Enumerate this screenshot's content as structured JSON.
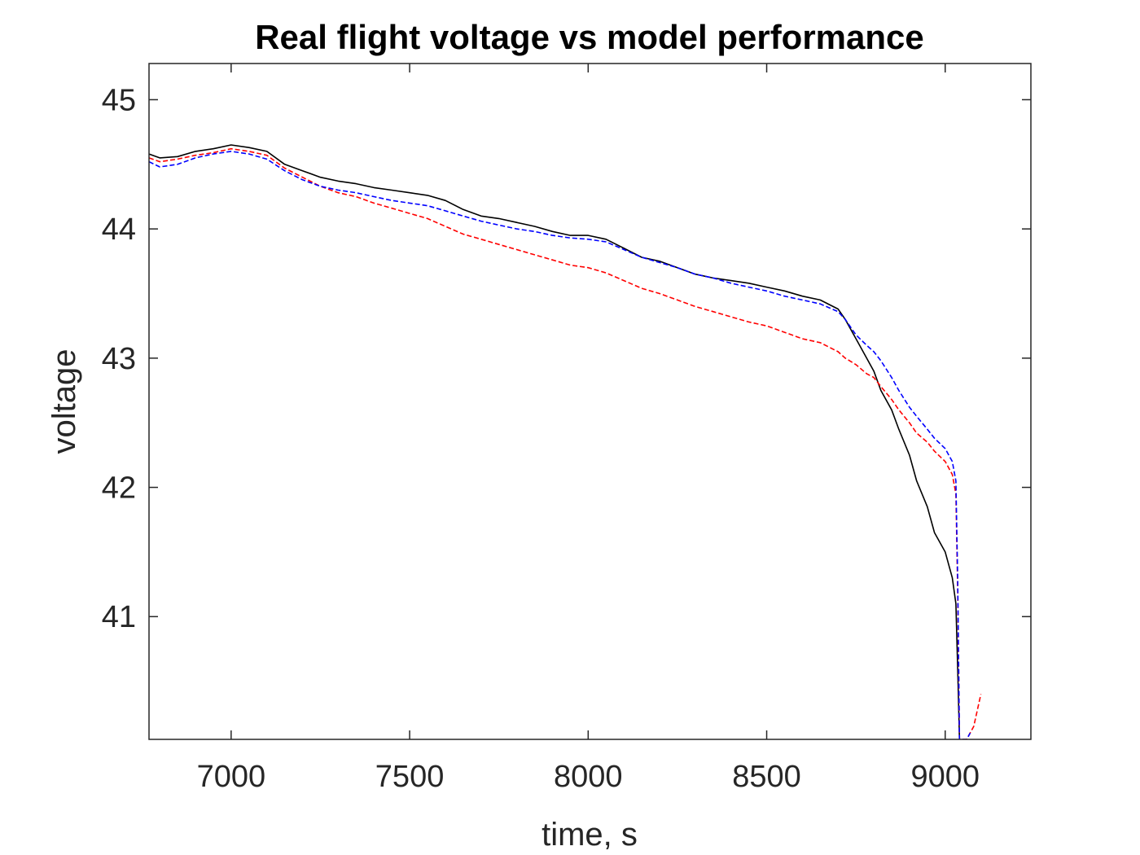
{
  "chart_data": {
    "type": "line",
    "title": "Real flight voltage vs model performance",
    "xlabel": "time, s",
    "ylabel": "voltage",
    "xlim": [
      6770,
      9240
    ],
    "ylim": [
      40.05,
      45.28
    ],
    "xticks": [
      7000,
      7500,
      8000,
      8500,
      9000
    ],
    "yticks": [
      41,
      42,
      43,
      44,
      45
    ],
    "grid": false,
    "legend": "none",
    "series": [
      {
        "color": "#000000",
        "style": "solid",
        "x": [
          6770,
          6800,
          6850,
          6900,
          6950,
          7000,
          7050,
          7100,
          7150,
          7200,
          7250,
          7300,
          7350,
          7400,
          7450,
          7500,
          7550,
          7600,
          7650,
          7700,
          7750,
          7800,
          7850,
          7900,
          7950,
          8000,
          8050,
          8100,
          8150,
          8200,
          8250,
          8300,
          8350,
          8400,
          8450,
          8500,
          8550,
          8600,
          8650,
          8700,
          8720,
          8750,
          8780,
          8800,
          8820,
          8850,
          8870,
          8900,
          8920,
          8950,
          8970,
          9000,
          9020,
          9030,
          9035,
          9040
        ],
        "y": [
          44.58,
          44.55,
          44.56,
          44.6,
          44.62,
          44.65,
          44.63,
          44.6,
          44.5,
          44.45,
          44.4,
          44.37,
          44.35,
          44.32,
          44.3,
          44.28,
          44.26,
          44.22,
          44.15,
          44.1,
          44.08,
          44.05,
          44.02,
          43.98,
          43.95,
          43.95,
          43.92,
          43.85,
          43.78,
          43.75,
          43.7,
          43.65,
          43.62,
          43.6,
          43.58,
          43.55,
          43.52,
          43.48,
          43.45,
          43.38,
          43.3,
          43.15,
          43.0,
          42.9,
          42.75,
          42.6,
          42.45,
          42.25,
          42.05,
          41.85,
          41.65,
          41.5,
          41.3,
          41.1,
          40.6,
          40.05
        ]
      },
      {
        "color": "#ff0000",
        "style": "dashed",
        "x": [
          6770,
          6800,
          6850,
          6900,
          6950,
          7000,
          7050,
          7100,
          7150,
          7200,
          7250,
          7300,
          7350,
          7400,
          7450,
          7500,
          7550,
          7600,
          7650,
          7700,
          7750,
          7800,
          7850,
          7900,
          7950,
          8000,
          8050,
          8100,
          8150,
          8200,
          8250,
          8300,
          8350,
          8400,
          8450,
          8500,
          8550,
          8600,
          8650,
          8700,
          8720,
          8750,
          8780,
          8800,
          8820,
          8850,
          8870,
          8900,
          8920,
          8950,
          8970,
          9000,
          9020,
          9030,
          9035,
          9040,
          9060,
          9080,
          9100
        ],
        "y": [
          44.55,
          44.52,
          44.54,
          44.57,
          44.59,
          44.62,
          44.6,
          44.57,
          44.47,
          44.4,
          44.33,
          44.28,
          44.25,
          44.2,
          44.16,
          44.12,
          44.08,
          44.02,
          43.96,
          43.92,
          43.88,
          43.84,
          43.8,
          43.76,
          43.72,
          43.7,
          43.66,
          43.6,
          43.54,
          43.5,
          43.45,
          43.4,
          43.36,
          43.32,
          43.28,
          43.25,
          43.2,
          43.15,
          43.12,
          43.05,
          43.0,
          42.95,
          42.88,
          42.85,
          42.78,
          42.68,
          42.6,
          42.5,
          42.42,
          42.35,
          42.28,
          42.2,
          42.1,
          41.95,
          41.2,
          40.05,
          40.05,
          40.15,
          40.4
        ]
      },
      {
        "color": "#0000ff",
        "style": "dashed",
        "x": [
          6770,
          6800,
          6850,
          6900,
          6950,
          7000,
          7050,
          7100,
          7150,
          7200,
          7250,
          7300,
          7350,
          7400,
          7450,
          7500,
          7550,
          7600,
          7650,
          7700,
          7750,
          7800,
          7850,
          7900,
          7950,
          8000,
          8050,
          8100,
          8150,
          8200,
          8250,
          8300,
          8350,
          8400,
          8450,
          8500,
          8550,
          8600,
          8650,
          8700,
          8720,
          8750,
          8780,
          8800,
          8820,
          8850,
          8870,
          8900,
          8920,
          8950,
          8970,
          9000,
          9020,
          9030,
          9035,
          9040,
          9060,
          9070
        ],
        "y": [
          44.52,
          44.48,
          44.5,
          44.55,
          44.58,
          44.6,
          44.58,
          44.54,
          44.45,
          44.38,
          44.33,
          44.3,
          44.28,
          44.25,
          44.22,
          44.2,
          44.18,
          44.14,
          44.1,
          44.06,
          44.03,
          44.0,
          43.98,
          43.95,
          43.93,
          43.92,
          43.9,
          43.84,
          43.78,
          43.74,
          43.7,
          43.65,
          43.62,
          43.58,
          43.55,
          43.52,
          43.48,
          43.45,
          43.42,
          43.36,
          43.3,
          43.18,
          43.1,
          43.05,
          42.98,
          42.85,
          42.75,
          42.62,
          42.55,
          42.45,
          42.38,
          42.3,
          42.2,
          42.05,
          41.3,
          40.05,
          40.05,
          40.1
        ]
      }
    ]
  }
}
